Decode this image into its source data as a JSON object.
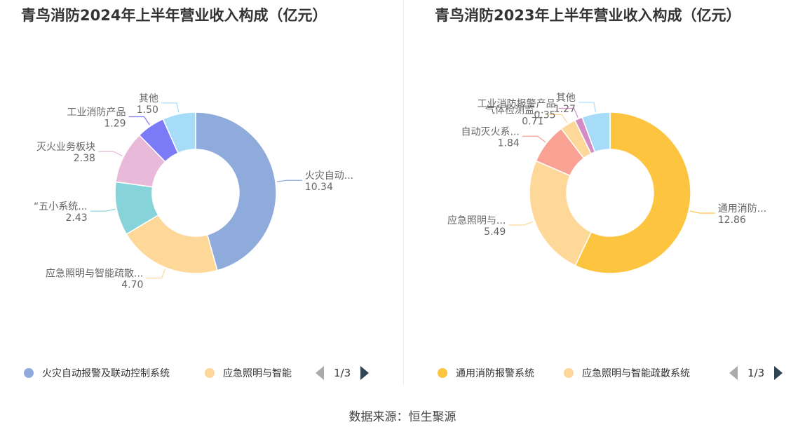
{
  "source": "数据来源：恒生聚源",
  "charts": [
    {
      "title": "青鸟消防2024年上半年营业收入构成（亿元）",
      "legend": {
        "items": [
          {
            "label": "火灾自动报警及联动控制系统",
            "color": "#8fabdb"
          },
          {
            "label": "应急照明与智能",
            "color": "#fed898"
          }
        ],
        "pager": "1/3"
      }
    },
    {
      "title": "青鸟消防2023年上半年营业收入构成（亿元）",
      "legend": {
        "items": [
          {
            "label": "通用消防报警系统",
            "color": "#fdc43f"
          },
          {
            "label": "应急照明与智能疏散系统",
            "color": "#fed898"
          }
        ],
        "pager": "1/3"
      }
    }
  ],
  "chart_data": [
    {
      "type": "pie",
      "title": "青鸟消防2024年上半年营业收入构成（亿元）",
      "donut": true,
      "slices": [
        {
          "label": "火灾自动...",
          "value": 10.34,
          "value_text": "10.34",
          "color": "#8fabdb"
        },
        {
          "label": "应急照明与智能疏散...",
          "value": 4.7,
          "value_text": "4.70",
          "color": "#fed898"
        },
        {
          "label": "“五小系统...",
          "value": 2.43,
          "value_text": "2.43",
          "color": "#86d4d9"
        },
        {
          "label": "灭火业务板块",
          "value": 2.38,
          "value_text": "2.38",
          "color": "#e8b9d8"
        },
        {
          "label": "工业消防产品",
          "value": 1.29,
          "value_text": "1.29",
          "color": "#7b7bf7"
        },
        {
          "label": "其他",
          "value": 1.5,
          "value_text": "1.50",
          "color": "#a7dcf9"
        }
      ]
    },
    {
      "type": "pie",
      "title": "青鸟消防2023年上半年营业收入构成（亿元）",
      "donut": true,
      "slices": [
        {
          "label": "通用消防...",
          "value": 12.86,
          "value_text": "12.86",
          "color": "#fdc43f"
        },
        {
          "label": "应急照明与...",
          "value": 5.49,
          "value_text": "5.49",
          "color": "#fed898"
        },
        {
          "label": "自动灭火系...",
          "value": 1.84,
          "value_text": "1.84",
          "color": "#f9a293"
        },
        {
          "label": "气体检测监...",
          "value": 0.71,
          "value_text": "0.71",
          "color": "#fed898"
        },
        {
          "label": "工业消防报警产品",
          "value": 0.35,
          "value_text": "0.35",
          "color": "#d48cc6"
        },
        {
          "label": "其他",
          "value": 1.27,
          "value_text": "1.27",
          "color": "#a7dcf9"
        }
      ]
    }
  ]
}
